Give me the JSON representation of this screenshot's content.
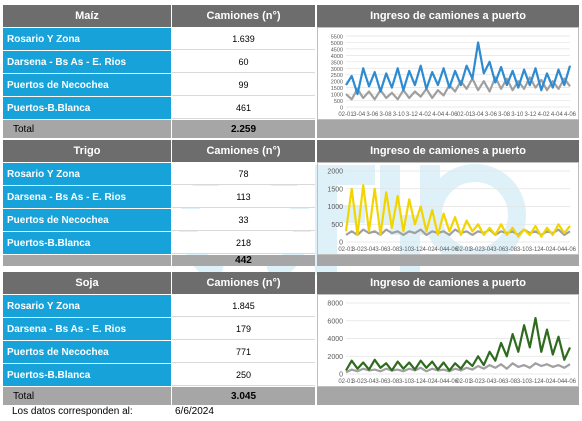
{
  "col_header": "Camiones (n°)",
  "chart_header": "Ingreso de camiones a puerto",
  "sections": [
    {
      "name": "Maíz",
      "rows": [
        {
          "label": "Rosario Y Zona",
          "value": "1.639"
        },
        {
          "label": "Darsena - Bs As - E. Rios",
          "value": "60"
        },
        {
          "label": "Puertos de Necochea",
          "value": "99"
        },
        {
          "label": "Puertos-B.Blanca",
          "value": "461"
        }
      ],
      "total_label": "Total",
      "total_value": "2.259"
    },
    {
      "name": "Trigo",
      "rows": [
        {
          "label": "Rosario Y Zona",
          "value": "78"
        },
        {
          "label": "Darsena - Bs As - E. Rios",
          "value": "113"
        },
        {
          "label": "Puertos de Necochea",
          "value": "33"
        },
        {
          "label": "Puertos-B.Blanca",
          "value": "218"
        }
      ],
      "total_label": "",
      "total_value": "442"
    },
    {
      "name": "Soja",
      "rows": [
        {
          "label": "Rosario Y Zona",
          "value": "1.845"
        },
        {
          "label": "Darsena - Bs As - E. Rios",
          "value": "179"
        },
        {
          "label": "Puertos de Necochea",
          "value": "771"
        },
        {
          "label": "Puertos-B.Blanca",
          "value": "250"
        }
      ],
      "total_label": "Total",
      "total_value": "3.045"
    }
  ],
  "footer": {
    "label": "Los datos corresponden al:",
    "date": "6/6/2024"
  },
  "colors": {
    "header_bg": "#6d6d6d",
    "row_label_bg": "#17a3d9",
    "total_bg": "#a6a6a6",
    "maiz": "#2e8bd1",
    "trigo": "#f2d500",
    "soja": "#2f6b1e",
    "prev": "#a0a0a0"
  },
  "chart_data": [
    {
      "type": "line",
      "ylim": [
        0,
        5500
      ],
      "yticks": [
        "0",
        "500",
        "1000",
        "1500",
        "2000",
        "2500",
        "3000",
        "3500",
        "4000",
        "4500",
        "5000",
        "5500"
      ],
      "xticks": [
        "02-01",
        "3-04",
        "3-06",
        "3-08",
        "3-10",
        "3-12",
        "4-02",
        "4-04",
        "4-06",
        "02-01",
        "3-04",
        "3-06",
        "3-08",
        "3-10",
        "3-12",
        "4-02",
        "4-04",
        "4-06"
      ],
      "series": [
        {
          "color": "#2e8bd1",
          "values": [
            1700,
            2400,
            1000,
            3000,
            1600,
            2700,
            1200,
            2600,
            1500,
            3000,
            1300,
            2800,
            1700,
            3200,
            1400,
            2700,
            1700,
            3000,
            1500,
            2800,
            1700,
            3200,
            2200,
            5000,
            2600,
            3500,
            1900,
            3100,
            1700,
            2800,
            1500,
            2900,
            1700,
            3000,
            1300,
            2600,
            1500,
            2900,
            1700,
            3200
          ]
        },
        {
          "color": "#a0a0a0",
          "values": [
            1000,
            600,
            1400,
            700,
            1200,
            600,
            1300,
            700,
            1100,
            600,
            1300,
            700,
            1200,
            800,
            1400,
            700,
            1300,
            900,
            1700,
            1200,
            2000,
            1400,
            2200,
            1300,
            2000,
            1200,
            2300,
            1400,
            2200,
            1300,
            2000,
            1400,
            2300,
            1500,
            2100,
            1300,
            2000,
            1400,
            2200,
            1600
          ]
        }
      ]
    },
    {
      "type": "line",
      "ylim": [
        0,
        2000
      ],
      "yticks": [
        "0",
        "500",
        "1000",
        "1500",
        "2000"
      ],
      "xticks": [
        "02-01",
        "3-02",
        "3-04",
        "3-06",
        "3-08",
        "3-10",
        "3-12",
        "4-02",
        "4-04",
        "4-06",
        "02-01",
        "3-02",
        "3-04",
        "3-06",
        "3-08",
        "3-10",
        "3-12",
        "4-02",
        "4-04",
        "4-06"
      ],
      "series": [
        {
          "color": "#f2d500",
          "values": [
            300,
            1500,
            200,
            1600,
            300,
            1500,
            200,
            1400,
            400,
            1300,
            300,
            1200,
            500,
            1000,
            300,
            900,
            200,
            800,
            300,
            700,
            200,
            600,
            300,
            500,
            200,
            400,
            200,
            500,
            200,
            400,
            150,
            350,
            200,
            450,
            150,
            400,
            200,
            500,
            250,
            450
          ]
        },
        {
          "color": "#a0a0a0",
          "values": [
            200,
            300,
            200,
            350,
            250,
            300,
            200,
            350,
            250,
            300,
            200,
            300,
            250,
            350,
            200,
            300,
            250,
            300,
            200,
            350,
            250,
            300,
            200,
            300,
            250,
            350,
            200,
            300,
            250,
            300,
            200,
            350,
            250,
            300,
            200,
            300,
            250,
            350,
            200,
            300
          ]
        }
      ]
    },
    {
      "type": "line",
      "ylim": [
        0,
        8000
      ],
      "yticks": [
        "0",
        "2000",
        "4000",
        "6000",
        "8000"
      ],
      "xticks": [
        "02-01",
        "3-02",
        "3-04",
        "3-06",
        "3-08",
        "3-10",
        "3-12",
        "4-02",
        "4-04",
        "4-06",
        "02-01",
        "3-02",
        "3-04",
        "3-06",
        "3-08",
        "3-10",
        "3-12",
        "4-02",
        "4-04",
        "4-06"
      ],
      "series": [
        {
          "color": "#2f6b1e",
          "values": [
            400,
            1500,
            600,
            1300,
            500,
            1600,
            700,
            1200,
            400,
            1400,
            600,
            1300,
            500,
            1500,
            700,
            1400,
            500,
            1300,
            400,
            1200,
            600,
            1500,
            900,
            2000,
            1000,
            2500,
            1500,
            3500,
            2000,
            4500,
            2500,
            5500,
            3000,
            6300,
            2500,
            5000,
            2200,
            4200,
            1600,
            3000
          ]
        },
        {
          "color": "#a0a0a0",
          "values": [
            200,
            500,
            300,
            600,
            400,
            500,
            300,
            600,
            400,
            500,
            300,
            600,
            400,
            700,
            300,
            600,
            400,
            500,
            300,
            600,
            400,
            700,
            500,
            900,
            600,
            1000,
            700,
            1100,
            600,
            1200,
            800,
            1000,
            700,
            1200,
            900,
            1100,
            800,
            1000,
            700,
            1100
          ]
        }
      ]
    }
  ]
}
